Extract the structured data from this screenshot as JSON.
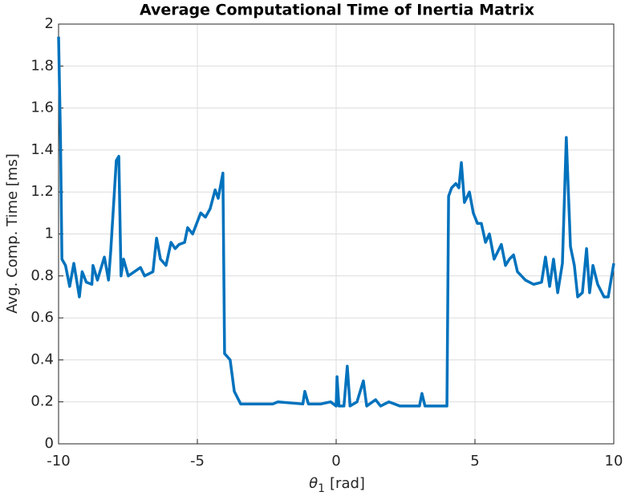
{
  "chart_data": {
    "type": "line",
    "title": "Average Computational Time of Inertia Matrix",
    "xlabel": {
      "symbol": "θ",
      "subscript": "1",
      "unit": "[rad]"
    },
    "ylabel": "Avg. Comp. Time [ms]",
    "xlim": [
      -10,
      10
    ],
    "ylim": [
      0,
      2
    ],
    "xticks": [
      -10,
      -5,
      0,
      5,
      10
    ],
    "yticks": [
      0,
      0.2,
      0.4,
      0.6,
      0.8,
      1,
      1.2,
      1.4,
      1.6,
      1.8,
      2
    ],
    "grid": true,
    "series": [
      {
        "name": "Avg. Comp. Time",
        "color": "#0072BD",
        "x": [
          -10,
          -9.93,
          -9.88,
          -9.75,
          -9.6,
          -9.45,
          -9.25,
          -9.15,
          -9.0,
          -8.8,
          -8.76,
          -8.6,
          -8.35,
          -8.2,
          -8.12,
          -7.92,
          -7.83,
          -7.75,
          -7.66,
          -7.49,
          -7.05,
          -6.9,
          -6.6,
          -6.47,
          -6.33,
          -6.13,
          -5.95,
          -5.8,
          -5.66,
          -5.46,
          -5.35,
          -5.17,
          -4.88,
          -4.71,
          -4.54,
          -4.36,
          -4.25,
          -4.08,
          -4.02,
          -3.82,
          -3.67,
          -3.44,
          -2.28,
          -2.1,
          -1.2,
          -1.13,
          -1.0,
          -0.55,
          -0.2,
          0.0,
          0.03,
          0.1,
          0.28,
          0.4,
          0.5,
          0.75,
          0.98,
          1.1,
          1.42,
          1.6,
          1.9,
          2.3,
          3.0,
          3.09,
          3.2,
          3.99,
          4.05,
          4.16,
          4.31,
          4.42,
          4.51,
          4.62,
          4.8,
          4.94,
          5.09,
          5.23,
          5.38,
          5.52,
          5.69,
          5.95,
          6.1,
          6.24,
          6.39,
          6.53,
          6.82,
          7.11,
          7.4,
          7.54,
          7.69,
          7.83,
          7.98,
          8.15,
          8.29,
          8.44,
          8.58,
          8.7,
          8.87,
          9.02,
          9.13,
          9.25,
          9.42,
          9.65,
          9.8,
          10
        ],
        "values": [
          1.94,
          1.45,
          0.88,
          0.85,
          0.75,
          0.86,
          0.7,
          0.82,
          0.77,
          0.76,
          0.85,
          0.78,
          0.89,
          0.78,
          0.92,
          1.35,
          1.37,
          0.8,
          0.88,
          0.8,
          0.84,
          0.8,
          0.82,
          0.98,
          0.88,
          0.85,
          0.96,
          0.93,
          0.95,
          0.96,
          1.03,
          1.0,
          1.1,
          1.08,
          1.12,
          1.21,
          1.17,
          1.29,
          0.43,
          0.4,
          0.25,
          0.19,
          0.19,
          0.2,
          0.19,
          0.25,
          0.19,
          0.19,
          0.2,
          0.18,
          0.32,
          0.18,
          0.18,
          0.37,
          0.18,
          0.2,
          0.3,
          0.18,
          0.21,
          0.18,
          0.2,
          0.18,
          0.18,
          0.24,
          0.18,
          0.18,
          1.18,
          1.22,
          1.24,
          1.22,
          1.34,
          1.15,
          1.2,
          1.1,
          1.05,
          1.05,
          0.96,
          1.0,
          0.88,
          0.95,
          0.85,
          0.88,
          0.9,
          0.82,
          0.78,
          0.76,
          0.77,
          0.89,
          0.75,
          0.88,
          0.72,
          0.86,
          1.46,
          0.94,
          0.85,
          0.7,
          0.72,
          0.93,
          0.72,
          0.85,
          0.76,
          0.7,
          0.7,
          0.86
        ]
      }
    ]
  }
}
